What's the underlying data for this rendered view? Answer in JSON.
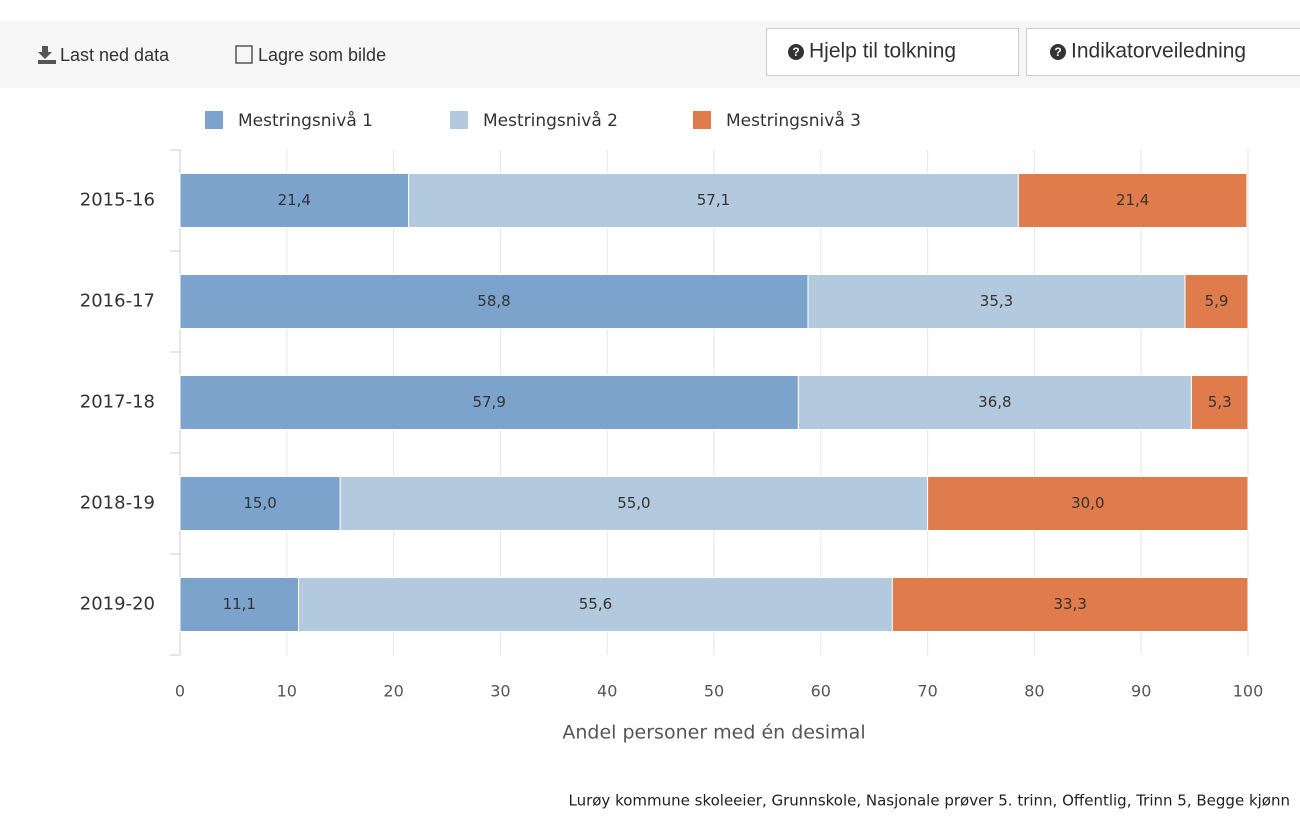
{
  "toolbar": {
    "download": "Last ned data",
    "save_image": "Lagre som bilde",
    "help": "Hjelp til tolkning",
    "guide": "Indikatorveiledning"
  },
  "chart_data": {
    "type": "stacked_bar_horizontal",
    "categories": [
      "2015-16",
      "2016-17",
      "2017-18",
      "2018-19",
      "2019-20"
    ],
    "series": [
      {
        "name": "Mestringsnivå 1",
        "color": "#7ba3cc",
        "values": [
          21.4,
          58.8,
          57.9,
          15.0,
          11.1
        ],
        "value_labels": [
          "21,4",
          "58,8",
          "57,9",
          "15,0",
          "11,1"
        ]
      },
      {
        "name": "Mestringsnivå 2",
        "color": "#b3c9de",
        "values": [
          57.1,
          35.3,
          36.8,
          55.0,
          55.6
        ],
        "value_labels": [
          "57,1",
          "35,3",
          "36,8",
          "55,0",
          "55,6"
        ]
      },
      {
        "name": "Mestringsnivå 3",
        "color": "#e07b4c",
        "values": [
          21.4,
          5.9,
          5.3,
          30.0,
          33.3
        ],
        "value_labels": [
          "21,4",
          "5,9",
          "5,3",
          "30,0",
          "33,3"
        ]
      }
    ],
    "xlim": [
      0,
      100
    ],
    "xticks": [
      0,
      10,
      20,
      30,
      40,
      50,
      60,
      70,
      80,
      90,
      100
    ],
    "x_label": "Andel personer med én desimal",
    "grid": true,
    "legend": "top",
    "footnote": "Lurøy kommune skoleeier, Grunnskole, Nasjonale prøver 5. trinn, Offentlig, Trinn 5, Begge kjønn"
  }
}
